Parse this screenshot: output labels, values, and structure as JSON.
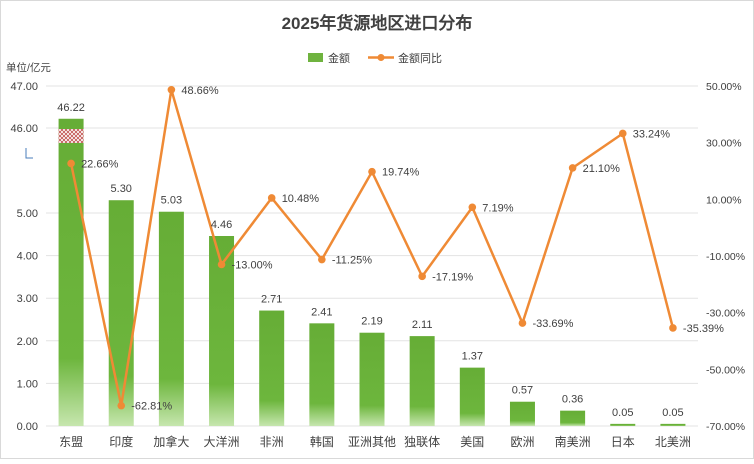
{
  "chart_data": {
    "type": "bar+line",
    "title": "2025年货源地区进口分布",
    "unit_label": "单位/亿元",
    "legend": {
      "placement": "top-center",
      "bar": "金额",
      "line": "金额同比"
    },
    "categories": [
      "东盟",
      "印度",
      "加拿大",
      "大洋洲",
      "非洲",
      "韩国",
      "亚洲其他",
      "独联体",
      "美国",
      "欧洲",
      "南美洲",
      "日本",
      "北美洲"
    ],
    "series": [
      {
        "name": "金额",
        "type": "bar",
        "axis": "left",
        "values": [
          46.22,
          5.3,
          5.03,
          4.46,
          2.71,
          2.41,
          2.19,
          2.11,
          1.37,
          0.57,
          0.36,
          0.05,
          0.05
        ],
        "labels": [
          "46.22",
          "5.30",
          "5.03",
          "4.46",
          "2.71",
          "2.41",
          "2.19",
          "2.11",
          "1.37",
          "0.57",
          "0.36",
          "0.05",
          "0.05"
        ]
      },
      {
        "name": "金额同比",
        "type": "line",
        "axis": "right",
        "values": [
          22.66,
          -62.81,
          48.66,
          -13.0,
          10.48,
          -11.25,
          19.74,
          -17.19,
          7.19,
          -33.69,
          21.1,
          33.24,
          -35.39
        ],
        "labels": [
          "22.66%",
          "-62.81%",
          "48.66%",
          "-13.00%",
          "10.48%",
          "-11.25%",
          "19.74%",
          "-17.19%",
          "7.19%",
          "-33.69%",
          "21.10%",
          "33.24%",
          "-35.39%"
        ]
      }
    ],
    "left_axis": {
      "ticks": [
        "0.00",
        "1.00",
        "2.00",
        "3.00",
        "4.00",
        "5.00",
        "46.00",
        "47.00"
      ],
      "lower_range": [
        0,
        5.5
      ],
      "break_range": [
        5.5,
        46.0
      ],
      "upper_range": [
        46.0,
        47.0
      ]
    },
    "right_axis": {
      "ticks": [
        "-70.00%",
        "-50.00%",
        "-30.00%",
        "-10.00%",
        "10.00%",
        "30.00%",
        "50.00%"
      ],
      "range": [
        -70,
        50
      ]
    },
    "colors": {
      "bar": "#6fb33f",
      "bar_light": "#a9d98a",
      "line": "#ef8a35",
      "grid": "#e3e3e3",
      "text": "#404040",
      "break_pattern": "#c0504d"
    }
  }
}
